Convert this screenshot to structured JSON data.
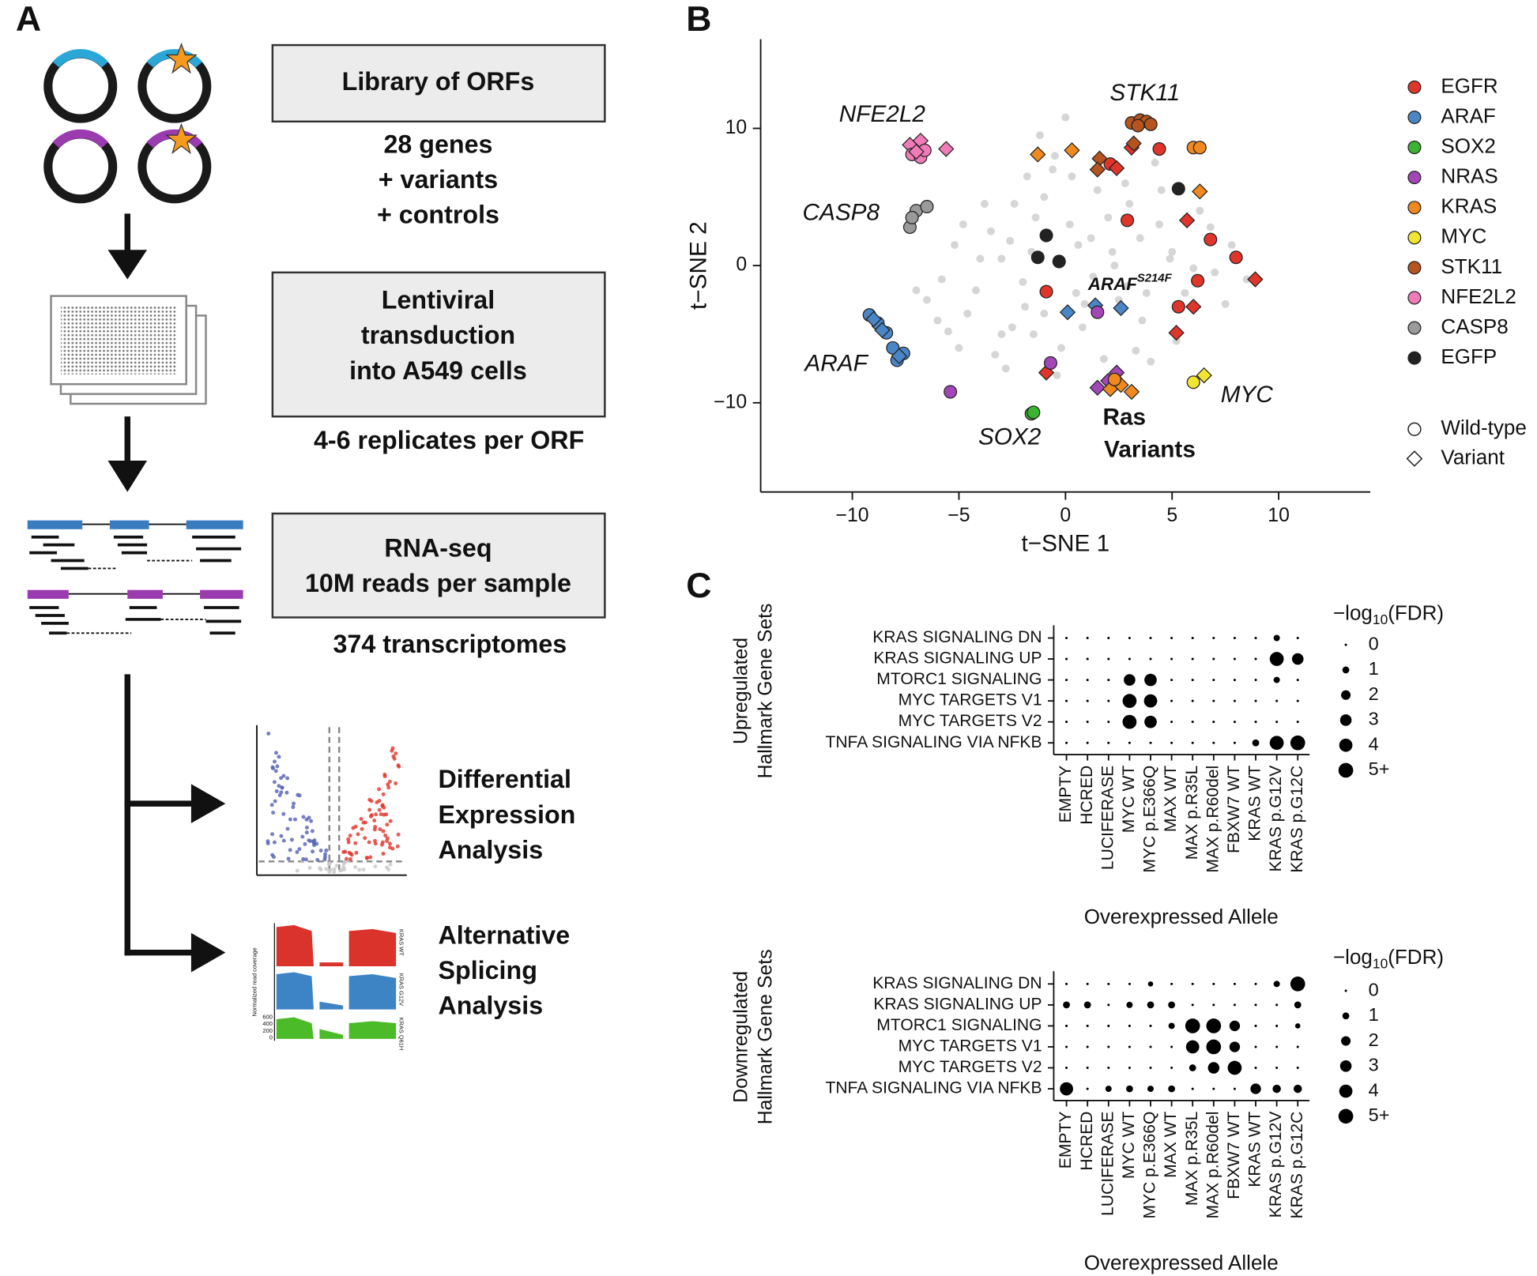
{
  "panel_labels": [
    "A",
    "B",
    "C"
  ],
  "panel_a": {
    "steps": [
      {
        "box": [
          "Library of ORFs"
        ],
        "caption": [
          "28 genes",
          "+ variants",
          "+ controls"
        ]
      },
      {
        "box": [
          "Lentiviral",
          "transduction",
          "into A549 cells"
        ],
        "caption": [
          "4-6 replicates per ORF"
        ]
      },
      {
        "box": [
          "RNA-seq",
          "10M reads per sample"
        ],
        "caption": [
          "374 transcriptomes"
        ]
      }
    ],
    "analyses": [
      [
        "Differential",
        "Expression",
        "Analysis"
      ],
      [
        "Alternative",
        "Splicing",
        "Analysis"
      ]
    ],
    "coverage_thumbnail": {
      "y_label": "Normalized read coverage",
      "yticks": [
        600,
        400,
        200,
        0
      ],
      "tracks": [
        "KRAS WT",
        "KRAS G12V",
        "KRAS Q61H"
      ]
    }
  },
  "chart_data": [
    {
      "type": "scatter",
      "xlabel": "t−SNE 1",
      "ylabel": "t−SNE 2",
      "xlim": [
        -14.3,
        14.3
      ],
      "ylim": [
        -16.5,
        16.5
      ],
      "xticks": [
        {
          "value": -10,
          "label": "−10"
        },
        {
          "value": -5,
          "label": "−5"
        },
        0,
        5,
        10
      ],
      "yticks": [
        {
          "value": -10,
          "label": "−10"
        },
        0,
        10
      ],
      "background": {
        "color": "#d6d6d6",
        "x": [
          -6.5,
          -5.8,
          -5.2,
          -4.6,
          -4.0,
          -3.5,
          -3.0,
          -2.4,
          -1.8,
          -1.2,
          -0.6,
          0.2,
          0.8,
          1.5,
          2.2,
          2.9,
          3.5,
          4.2,
          4.9,
          5.6,
          6.3,
          7.0,
          7.8,
          8.5,
          -6.0,
          -5.0,
          -4.2,
          -3.3,
          -2.6,
          -1.9,
          -1.0,
          -0.2,
          0.6,
          1.3,
          2.0,
          2.8,
          3.6,
          4.4,
          5.2,
          6.0,
          6.8,
          7.5,
          -4.8,
          -3.8,
          -2.8,
          -1.5,
          -0.5,
          0.5,
          1.8,
          3.0,
          4.0,
          5.0,
          -3.0,
          -2.0,
          -1.0,
          0.3,
          1.2,
          2.5,
          3.3,
          4.5,
          -2.5,
          -1.4,
          -0.4,
          0.9,
          2.3,
          3.8,
          -1.6,
          0.0,
          -5.5,
          -7.0
        ],
        "y": [
          -2.5,
          -1.0,
          1.5,
          -3.5,
          0.5,
          2.5,
          -5.0,
          4.5,
          6.5,
          9.5,
          7.0,
          3.0,
          -4.5,
          5.5,
          1.0,
          -1.5,
          2.0,
          7.5,
          0.5,
          -2.0,
          4.0,
          -0.5,
          1.5,
          -1.0,
          -4.0,
          -6.0,
          -1.8,
          -6.5,
          1.8,
          -3.0,
          5.0,
          -6.0,
          1.5,
          -0.8,
          3.5,
          6.0,
          -4.0,
          3.0,
          -5.5,
          -0.2,
          2.8,
          -2.8,
          3.0,
          4.5,
          -7.5,
          -5.0,
          8.0,
          -2.0,
          -6.8,
          4.5,
          -7.0,
          1.0,
          0.5,
          -1.2,
          -3.5,
          6.5,
          2.0,
          -2.5,
          -6.2,
          5.5,
          -4.5,
          3.5,
          -8.0,
          -2.8,
          0.0,
          -2.0,
          1.0,
          10.8,
          -4.8,
          -1.8
        ]
      },
      "series": [
        {
          "name": "EGFR",
          "color": "#e0352b",
          "x": [
            2.1,
            3.1,
            4.4,
            2.9,
            5.7,
            6.8,
            8.0,
            8.9,
            6.2,
            -0.9,
            5.3,
            6.0,
            5.2,
            -0.9,
            2.4
          ],
          "y": [
            7.4,
            8.6,
            8.5,
            3.3,
            3.3,
            1.9,
            0.6,
            -1.0,
            -1.1,
            -1.9,
            -3.0,
            -3.0,
            -4.9,
            -7.8,
            7.1
          ],
          "markers": [
            "circle",
            "diamond",
            "circle",
            "circle",
            "diamond",
            "circle",
            "circle",
            "diamond",
            "circle",
            "circle",
            "circle",
            "diamond",
            "diamond",
            "diamond",
            "diamond"
          ]
        },
        {
          "name": "ARAF",
          "color": "#4a86c5",
          "x": [
            -9.2,
            -8.8,
            -8.4,
            -8.1,
            -7.6,
            -7.9,
            -9.0,
            -8.6,
            -7.8,
            0.1,
            1.4,
            2.6
          ],
          "y": [
            -3.6,
            -4.2,
            -4.9,
            -6.0,
            -6.4,
            -6.9,
            -3.9,
            -4.7,
            -6.6,
            -3.4,
            -2.9,
            -3.1
          ],
          "markers": [
            "circle",
            "circle",
            "circle",
            "circle",
            "circle",
            "circle",
            "diamond",
            "diamond",
            "diamond",
            "diamond",
            "diamond",
            "diamond"
          ]
        },
        {
          "name": "SOX2",
          "color": "#3cb332",
          "x": [
            -1.6,
            -1.5
          ],
          "y": [
            -10.8,
            -10.7
          ],
          "markers": [
            "circle",
            "circle"
          ]
        },
        {
          "name": "NRAS",
          "color": "#a347b8",
          "x": [
            -0.7,
            -5.4,
            1.5,
            1.5,
            2.0,
            2.4
          ],
          "y": [
            -7.1,
            -9.2,
            -3.4,
            -8.9,
            -8.4,
            -7.8
          ],
          "markers": [
            "circle",
            "circle",
            "circle",
            "diamond",
            "diamond",
            "diamond"
          ]
        },
        {
          "name": "KRAS",
          "color": "#f08a1f",
          "x": [
            -1.3,
            0.3,
            6.0,
            6.3,
            6.3,
            2.6,
            3.1,
            2.1,
            2.3
          ],
          "y": [
            8.1,
            8.4,
            8.6,
            8.6,
            5.4,
            -8.7,
            -9.2,
            -9.0,
            -8.3
          ],
          "markers": [
            "diamond",
            "diamond",
            "circle",
            "circle",
            "diamond",
            "diamond",
            "diamond",
            "diamond",
            "circle"
          ]
        },
        {
          "name": "MYC",
          "color": "#f2e532",
          "x": [
            6.0,
            6.5
          ],
          "y": [
            -8.5,
            -8.0
          ],
          "markers": [
            "circle",
            "diamond"
          ]
        },
        {
          "name": "STK11",
          "color": "#b5541f",
          "x": [
            3.1,
            3.5,
            3.8,
            4.0,
            3.4,
            1.6,
            1.5,
            3.2
          ],
          "y": [
            10.4,
            10.6,
            10.5,
            10.3,
            10.2,
            7.8,
            7.0,
            8.9
          ],
          "markers": [
            "circle",
            "circle",
            "circle",
            "circle",
            "circle",
            "diamond",
            "diamond",
            "diamond"
          ]
        },
        {
          "name": "NFE2L2",
          "color": "#f07bb8",
          "x": [
            -7.3,
            -6.8,
            -5.6,
            -7.2,
            -6.8,
            -6.6,
            -7.0
          ],
          "y": [
            8.8,
            9.1,
            8.5,
            8.1,
            7.9,
            8.4,
            8.3
          ],
          "markers": [
            "diamond",
            "diamond",
            "diamond",
            "circle",
            "circle",
            "circle",
            "diamond"
          ]
        },
        {
          "name": "CASP8",
          "color": "#9a9a9a",
          "x": [
            -7.3,
            -7.0,
            -6.5,
            -7.2
          ],
          "y": [
            2.8,
            4.0,
            4.3,
            3.5
          ],
          "markers": [
            "circle",
            "circle",
            "circle",
            "circle"
          ]
        },
        {
          "name": "EGFP",
          "color": "#222222",
          "x": [
            -0.9,
            -1.3,
            -0.3,
            5.3
          ],
          "y": [
            2.2,
            0.6,
            0.3,
            5.6
          ],
          "markers": [
            "circle",
            "circle",
            "circle",
            "circle"
          ]
        }
      ],
      "marker_legend": [
        {
          "name": "Wild-type",
          "marker": "circle"
        },
        {
          "name": "Variant",
          "marker": "diamond"
        }
      ],
      "annotations": [
        {
          "text": "NFE2L2",
          "italic": true
        },
        {
          "text": "STK11",
          "italic": true
        },
        {
          "text": "CASP8",
          "italic": true
        },
        {
          "text": "ARAF",
          "italic": true
        },
        {
          "text": "SOX2",
          "italic": true
        },
        {
          "text": "MYC",
          "italic": true
        },
        {
          "text": "ARAF",
          "superscript": "S214F",
          "italic": true,
          "bold": true
        },
        {
          "text": "Ras",
          "bold": true
        },
        {
          "text": "Variants",
          "bold": true
        }
      ]
    },
    {
      "type": "dot_matrix",
      "ylabel": [
        "Upregulated",
        "Hallmark Gene Sets"
      ],
      "xlabel": "Overexpressed Allele",
      "color": "#000000",
      "rows": [
        "KRAS SIGNALING DN",
        "KRAS SIGNALING UP",
        "MTORC1 SIGNALING",
        "MYC TARGETS V1",
        "MYC TARGETS V2",
        "TNFA SIGNALING VIA NFKB"
      ],
      "columns": [
        "EMPTY",
        "HCRED",
        "LUCIFERASE",
        "MYC WT",
        "MYC p.E366Q",
        "MAX WT",
        "MAX p.R35L",
        "MAX p.R60del",
        "FBXW7 WT",
        "KRAS WT",
        "KRAS p.G12V",
        "KRAS p.G12C"
      ],
      "values": [
        [
          0,
          0,
          0,
          0,
          0,
          0,
          0,
          0,
          0,
          0,
          0.8,
          0
        ],
        [
          0,
          0,
          0,
          0,
          0,
          0,
          0,
          0,
          0,
          0,
          4.5,
          3
        ],
        [
          0,
          0,
          0,
          3,
          3.5,
          0,
          0,
          0,
          0,
          0,
          0.8,
          0
        ],
        [
          0,
          0,
          0,
          4.5,
          4,
          0,
          0,
          0,
          0,
          0,
          0,
          0
        ],
        [
          0,
          0,
          0,
          4.5,
          3.5,
          0,
          0,
          0,
          0,
          0,
          0,
          0
        ],
        [
          0,
          0,
          0,
          0,
          0,
          0,
          0,
          0,
          0,
          1,
          4.5,
          5
        ]
      ],
      "size_title": {
        "prefix": "−log",
        "subscript": "10",
        "suffix": "(FDR)"
      },
      "sizeticks": [
        0,
        1,
        2,
        3,
        4,
        {
          "value": 5,
          "label": "5+"
        }
      ]
    },
    {
      "type": "dot_matrix",
      "ylabel": [
        "Downregulated",
        "Hallmark Gene Sets"
      ],
      "xlabel": "Overexpressed Allele",
      "color": "#000000",
      "rows": [
        "KRAS SIGNALING DN",
        "KRAS SIGNALING UP",
        "MTORC1 SIGNALING",
        "MYC TARGETS V1",
        "MYC TARGETS V2",
        "TNFA SIGNALING VIA NFKB"
      ],
      "columns": [
        "EMPTY",
        "HCRED",
        "LUCIFERASE",
        "MYC WT",
        "MYC p.E366Q",
        "MAX WT",
        "MAX p.R35L",
        "MAX p.R60del",
        "FBXW7 WT",
        "KRAS WT",
        "KRAS p.G12V",
        "KRAS p.G12C"
      ],
      "values": [
        [
          0,
          0,
          0,
          0,
          0.5,
          0,
          0,
          0,
          0,
          0,
          0.8,
          5
        ],
        [
          1,
          1,
          0,
          0.8,
          1,
          1,
          0,
          0,
          0,
          0,
          0,
          1
        ],
        [
          0,
          0,
          0,
          0,
          0,
          0.8,
          5,
          5,
          2.5,
          0,
          0,
          0.5
        ],
        [
          0,
          0,
          0,
          0,
          0,
          0,
          4,
          5,
          2.5,
          0,
          0,
          0
        ],
        [
          0,
          0,
          0,
          0,
          0,
          0,
          1,
          3,
          4.5,
          0,
          0,
          0
        ],
        [
          4,
          0,
          0.8,
          1,
          0.8,
          1,
          0,
          0,
          0,
          2.5,
          1.5,
          1.5
        ]
      ],
      "size_title": {
        "prefix": "−log",
        "subscript": "10",
        "suffix": "(FDR)"
      },
      "sizeticks": [
        0,
        1,
        2,
        3,
        4,
        {
          "value": 5,
          "label": "5+"
        }
      ]
    }
  ]
}
